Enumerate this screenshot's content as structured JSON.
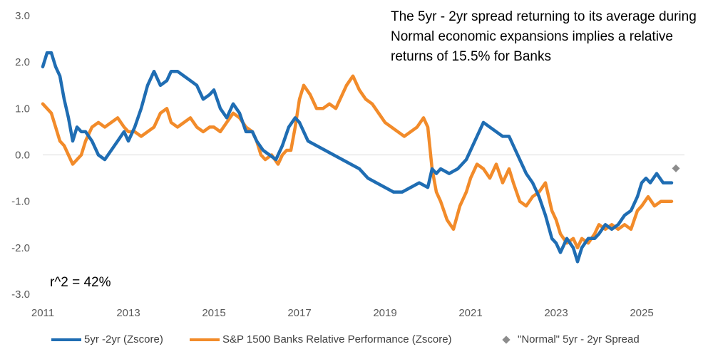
{
  "chart_data": {
    "type": "line",
    "annotation": "The 5yr - 2yr spread returning to its average during Normal economic expansions implies a relative returns of   15.5% for Banks",
    "r2_label": "r^2 =  42%",
    "y_ticks": [
      "3.0",
      "2.0",
      "1.0",
      "0.0",
      "-1.0",
      "-2.0",
      "-3.0"
    ],
    "x_ticks": [
      "2011",
      "2013",
      "2015",
      "2017",
      "2019",
      "2021",
      "2023",
      "2025"
    ],
    "ylim": [
      -3.0,
      3.0
    ],
    "xlim": [
      2011.0,
      2026.0
    ],
    "grid": false,
    "legend_placement": "bottom",
    "series": [
      {
        "name": "5yr -2yr (Zscore)",
        "color": "#1f6db3",
        "x": [
          2011.0,
          2011.1,
          2011.2,
          2011.3,
          2011.4,
          2011.5,
          2011.6,
          2011.7,
          2011.8,
          2011.9,
          2012.0,
          2012.15,
          2012.3,
          2012.45,
          2012.6,
          2012.75,
          2012.9,
          2013.0,
          2013.15,
          2013.3,
          2013.45,
          2013.6,
          2013.75,
          2013.9,
          2014.0,
          2014.15,
          2014.3,
          2014.45,
          2014.6,
          2014.75,
          2014.9,
          2015.0,
          2015.15,
          2015.3,
          2015.45,
          2015.6,
          2015.75,
          2015.9,
          2016.0,
          2016.15,
          2016.3,
          2016.45,
          2016.6,
          2016.75,
          2016.9,
          2017.0,
          2017.2,
          2017.4,
          2017.6,
          2017.8,
          2018.0,
          2018.2,
          2018.4,
          2018.6,
          2018.8,
          2019.0,
          2019.2,
          2019.4,
          2019.6,
          2019.8,
          2020.0,
          2020.1,
          2020.2,
          2020.3,
          2020.5,
          2020.7,
          2020.9,
          2021.0,
          2021.15,
          2021.3,
          2021.45,
          2021.6,
          2021.75,
          2021.9,
          2022.0,
          2022.15,
          2022.3,
          2022.45,
          2022.6,
          2022.75,
          2022.9,
          2023.0,
          2023.1,
          2023.25,
          2023.4,
          2023.5,
          2023.6,
          2023.75,
          2023.9,
          2024.0,
          2024.15,
          2024.3,
          2024.45,
          2024.6,
          2024.75,
          2024.9,
          2025.0,
          2025.1,
          2025.2,
          2025.35,
          2025.5,
          2025.6,
          2025.7
        ],
        "values": [
          1.9,
          2.2,
          2.2,
          1.9,
          1.7,
          1.2,
          0.8,
          0.3,
          0.6,
          0.5,
          0.5,
          0.3,
          0.0,
          -0.1,
          0.1,
          0.3,
          0.5,
          0.3,
          0.6,
          1.0,
          1.5,
          1.8,
          1.5,
          1.6,
          1.8,
          1.8,
          1.7,
          1.6,
          1.5,
          1.2,
          1.3,
          1.4,
          1.0,
          0.8,
          1.1,
          0.9,
          0.5,
          0.5,
          0.3,
          0.1,
          0.0,
          -0.1,
          0.2,
          0.6,
          0.8,
          0.7,
          0.3,
          0.2,
          0.1,
          0.0,
          -0.1,
          -0.2,
          -0.3,
          -0.5,
          -0.6,
          -0.7,
          -0.8,
          -0.8,
          -0.7,
          -0.6,
          -0.7,
          -0.3,
          -0.4,
          -0.3,
          -0.4,
          -0.3,
          -0.1,
          0.1,
          0.4,
          0.7,
          0.6,
          0.5,
          0.4,
          0.4,
          0.2,
          -0.1,
          -0.4,
          -0.6,
          -0.9,
          -1.3,
          -1.8,
          -1.9,
          -2.1,
          -1.8,
          -2.0,
          -2.3,
          -2.0,
          -1.8,
          -1.8,
          -1.7,
          -1.5,
          -1.6,
          -1.5,
          -1.3,
          -1.2,
          -0.9,
          -0.6,
          -0.5,
          -0.6,
          -0.4,
          -0.6,
          -0.6,
          -0.6
        ]
      },
      {
        "name": "S&P 1500 Banks Relative Performance (Zscore)",
        "color": "#f28b2a",
        "x": [
          2011.0,
          2011.1,
          2011.2,
          2011.3,
          2011.4,
          2011.5,
          2011.6,
          2011.7,
          2011.8,
          2011.9,
          2012.0,
          2012.15,
          2012.3,
          2012.45,
          2012.6,
          2012.75,
          2012.9,
          2013.0,
          2013.15,
          2013.3,
          2013.45,
          2013.6,
          2013.75,
          2013.9,
          2014.0,
          2014.15,
          2014.3,
          2014.45,
          2014.6,
          2014.75,
          2014.9,
          2015.0,
          2015.15,
          2015.3,
          2015.45,
          2015.6,
          2015.75,
          2015.9,
          2016.0,
          2016.1,
          2016.2,
          2016.35,
          2016.5,
          2016.6,
          2016.7,
          2016.8,
          2016.9,
          2017.0,
          2017.1,
          2017.25,
          2017.4,
          2017.55,
          2017.7,
          2017.85,
          2018.0,
          2018.1,
          2018.25,
          2018.4,
          2018.55,
          2018.7,
          2018.85,
          2019.0,
          2019.15,
          2019.3,
          2019.45,
          2019.6,
          2019.75,
          2019.9,
          2020.0,
          2020.1,
          2020.2,
          2020.3,
          2020.45,
          2020.6,
          2020.75,
          2020.9,
          2021.0,
          2021.15,
          2021.3,
          2021.45,
          2021.6,
          2021.75,
          2021.9,
          2022.0,
          2022.15,
          2022.3,
          2022.45,
          2022.6,
          2022.75,
          2022.9,
          2023.0,
          2023.1,
          2023.25,
          2023.4,
          2023.5,
          2023.6,
          2023.75,
          2023.9,
          2024.0,
          2024.15,
          2024.3,
          2024.45,
          2024.6,
          2024.75,
          2024.9,
          2025.0,
          2025.15,
          2025.3,
          2025.45,
          2025.6,
          2025.7
        ],
        "values": [
          1.1,
          1.0,
          0.9,
          0.6,
          0.3,
          0.2,
          0.0,
          -0.2,
          -0.1,
          0.0,
          0.3,
          0.6,
          0.7,
          0.6,
          0.7,
          0.8,
          0.6,
          0.5,
          0.5,
          0.4,
          0.5,
          0.6,
          0.9,
          1.0,
          0.7,
          0.6,
          0.7,
          0.8,
          0.6,
          0.5,
          0.6,
          0.6,
          0.5,
          0.7,
          0.9,
          0.8,
          0.6,
          0.5,
          0.3,
          0.0,
          -0.1,
          0.0,
          -0.2,
          0.0,
          0.1,
          0.1,
          0.6,
          1.2,
          1.5,
          1.3,
          1.0,
          1.0,
          1.1,
          1.0,
          1.3,
          1.5,
          1.7,
          1.4,
          1.2,
          1.1,
          0.9,
          0.7,
          0.6,
          0.5,
          0.4,
          0.5,
          0.6,
          0.8,
          0.6,
          -0.3,
          -0.8,
          -1.0,
          -1.4,
          -1.6,
          -1.1,
          -0.8,
          -0.5,
          -0.2,
          -0.3,
          -0.5,
          -0.2,
          -0.6,
          -0.3,
          -0.6,
          -1.0,
          -1.1,
          -0.9,
          -0.8,
          -0.6,
          -1.2,
          -1.4,
          -1.7,
          -1.9,
          -1.8,
          -2.0,
          -1.8,
          -1.9,
          -1.7,
          -1.5,
          -1.6,
          -1.5,
          -1.6,
          -1.5,
          -1.6,
          -1.2,
          -1.1,
          -0.9,
          -1.1,
          -1.0,
          -1.0,
          -1.0
        ]
      },
      {
        "name": "\"Normal\" 5yr - 2yr Spread",
        "color": "#8c8c8c",
        "x": [
          2025.8
        ],
        "values": [
          -0.29
        ]
      }
    ]
  }
}
